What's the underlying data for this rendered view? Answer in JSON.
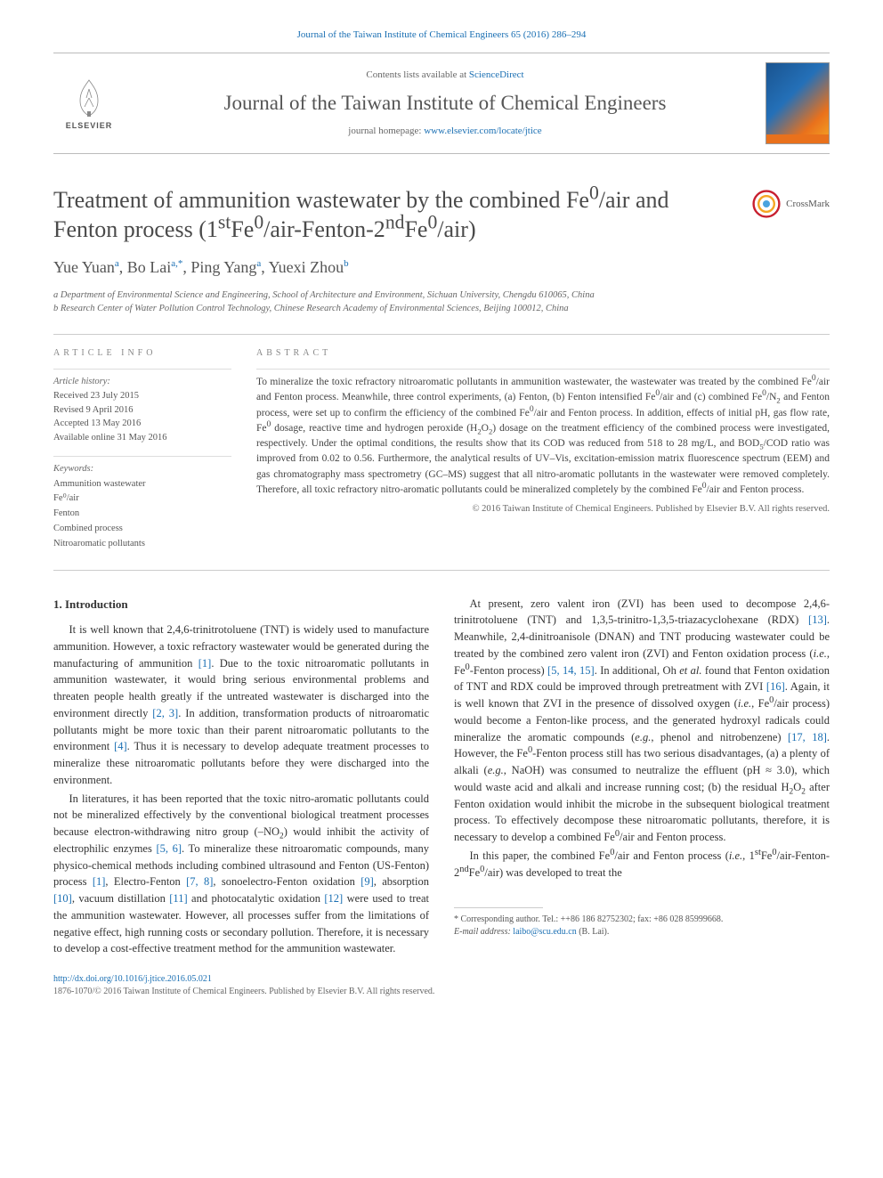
{
  "citation_line": "Journal of the Taiwan Institute of Chemical Engineers 65 (2016) 286–294",
  "masthead": {
    "contents_line_prefix": "Contents lists available at ",
    "contents_link": "ScienceDirect",
    "journal_name": "Journal of the Taiwan Institute of Chemical Engineers",
    "homepage_prefix": "journal homepage: ",
    "homepage_link": "www.elsevier.com/locate/jtice",
    "publisher_logo_text": "ELSEVIER"
  },
  "article": {
    "title_html": "Treatment of ammunition wastewater by the combined Fe<sup>0</sup>/air and Fenton process (1<sup>st</sup>Fe<sup>0</sup>/air-Fenton-2<sup>nd</sup>Fe<sup>0</sup>/air)",
    "crossmark_label": "CrossMark",
    "authors_html": "Yue Yuan<sup>a</sup>, Bo Lai<sup>a,*</sup>, Ping Yang<sup>a</sup>, Yuexi Zhou<sup>b</sup>",
    "affiliations": [
      "a Department of Environmental Science and Engineering, School of Architecture and Environment, Sichuan University, Chengdu 610065, China",
      "b Research Center of Water Pollution Control Technology, Chinese Research Academy of Environmental Sciences, Beijing 100012, China"
    ]
  },
  "article_info": {
    "heading": "ARTICLE INFO",
    "history_label": "Article history:",
    "history": [
      "Received 23 July 2015",
      "Revised 9 April 2016",
      "Accepted 13 May 2016",
      "Available online 31 May 2016"
    ],
    "keywords_label": "Keywords:",
    "keywords": [
      "Ammunition wastewater",
      "Fe⁰/air",
      "Fenton",
      "Combined process",
      "Nitroaromatic pollutants"
    ]
  },
  "abstract": {
    "heading": "ABSTRACT",
    "body_html": "To mineralize the toxic refractory nitroaromatic pollutants in ammunition wastewater, the wastewater was treated by the combined Fe<sup>0</sup>/air and Fenton process. Meanwhile, three control experiments, (a) Fenton, (b) Fenton intensified Fe<sup>0</sup>/air and (c) combined Fe<sup>0</sup>/N<sub>2</sub> and Fenton process, were set up to confirm the efficiency of the combined Fe<sup>0</sup>/air and Fenton process. In addition, effects of initial pH, gas flow rate, Fe<sup>0</sup> dosage, reactive time and hydrogen peroxide (H<sub>2</sub>O<sub>2</sub>) dosage on the treatment efficiency of the combined process were investigated, respectively. Under the optimal conditions, the results show that its COD was reduced from 518 to 28 mg/L, and BOD<sub>5</sub>/COD ratio was improved from 0.02 to 0.56. Furthermore, the analytical results of UV–Vis, excitation-emission matrix fluorescence spectrum (EEM) and gas chromatography mass spectrometry (GC–MS) suggest that all nitro-aromatic pollutants in the wastewater were removed completely. Therefore, all toxic refractory nitro-aromatic pollutants could be mineralized completely by the combined Fe<sup>0</sup>/air and Fenton process.",
    "copyright": "© 2016 Taiwan Institute of Chemical Engineers. Published by Elsevier B.V. All rights reserved."
  },
  "body": {
    "section_number": "1.",
    "section_title": "Introduction",
    "paragraphs_html": [
      "It is well known that 2,4,6-trinitrotoluene (TNT) is widely used to manufacture ammunition. However, a toxic refractory wastewater would be generated during the manufacturing of ammunition <span class=\"cite\">[1]</span>. Due to the toxic nitroaromatic pollutants in ammunition wastewater, it would bring serious environmental problems and threaten people health greatly if the untreated wastewater is discharged into the environment directly <span class=\"cite\">[2, 3]</span>. In addition, transformation products of nitroaromatic pollutants might be more toxic than their parent nitroaromatic pollutants to the environment <span class=\"cite\">[4]</span>. Thus it is necessary to develop adequate treatment processes to mineralize these nitroaromatic pollutants before they were discharged into the environment.",
      "In literatures, it has been reported that the toxic nitro-aromatic pollutants could not be mineralized effectively by the conventional biological treatment processes because electron-withdrawing nitro group (–NO<sub>2</sub>) would inhibit the activity of electrophilic enzymes <span class=\"cite\">[5, 6]</span>. To mineralize these nitroaromatic compounds, many physico-chemical methods including combined ultrasound and Fenton (US-Fenton) process <span class=\"cite\">[1]</span>, Electro-Fenton <span class=\"cite\">[7, 8]</span>, sonoelectro-Fenton oxidation <span class=\"cite\">[9]</span>, absorption <span class=\"cite\">[10]</span>, vacuum distillation <span class=\"cite\">[11]</span> and photocatalytic oxidation <span class=\"cite\">[12]</span> were used to treat the ammunition wastewater. However, all processes suffer from the limitations of negative effect, high running costs or secondary pollution. Therefore, it is necessary to develop a cost-effective treatment method for the ammunition wastewater.",
      "At present, zero valent iron (ZVI) has been used to decompose 2,4,6-trinitrotoluene (TNT) and 1,3,5-trinitro-1,3,5-triazacyclohexane (RDX) <span class=\"cite\">[13]</span>. Meanwhile, 2,4-dinitroanisole (DNAN) and TNT producing wastewater could be treated by the combined zero valent iron (ZVI) and Fenton oxidation process (<i>i.e.</i>, Fe<sup>0</sup>-Fenton process) <span class=\"cite\">[5, 14, 15]</span>. In additional, Oh <i>et al.</i> found that Fenton oxidation of TNT and RDX could be improved through pretreatment with ZVI <span class=\"cite\">[16]</span>. Again, it is well known that ZVI in the presence of dissolved oxygen (<i>i.e.</i>, Fe<sup>0</sup>/air process) would become a Fenton-like process, and the generated hydroxyl radicals could mineralize the aromatic compounds (<i>e.g.</i>, phenol and nitrobenzene) <span class=\"cite\">[17, 18]</span>. However, the Fe<sup>0</sup>-Fenton process still has two serious disadvantages, (a) a plenty of alkali (<i>e.g.</i>, NaOH) was consumed to neutralize the effluent (pH ≈ 3.0), which would waste acid and alkali and increase running cost; (b) the residual H<sub>2</sub>O<sub>2</sub> after Fenton oxidation would inhibit the microbe in the subsequent biological treatment process. To effectively decompose these nitroaromatic pollutants, therefore, it is necessary to develop a combined Fe<sup>0</sup>/air and Fenton process.",
      "In this paper, the combined Fe<sup>0</sup>/air and Fenton process (<i>i.e.</i>, 1<sup>st</sup>Fe<sup>0</sup>/air-Fenton-2<sup>nd</sup>Fe<sup>0</sup>/air) was developed to treat the"
    ]
  },
  "footnote": {
    "corresponding": "* Corresponding author. Tel.: ++86 186 82752302; fax: +86 028 85999668.",
    "email_label": "E-mail address:",
    "email": "laibo@scu.edu.cn",
    "email_suffix": "(B. Lai)."
  },
  "footer": {
    "doi": "http://dx.doi.org/10.1016/j.jtice.2016.05.021",
    "issn_line": "1876-1070/© 2016 Taiwan Institute of Chemical Engineers. Published by Elsevier B.V. All rights reserved."
  },
  "colors": {
    "link": "#1a6fb3",
    "text": "#333333",
    "muted": "#666666",
    "rule": "#cccccc",
    "elsevier_orange": "#e9711c"
  }
}
